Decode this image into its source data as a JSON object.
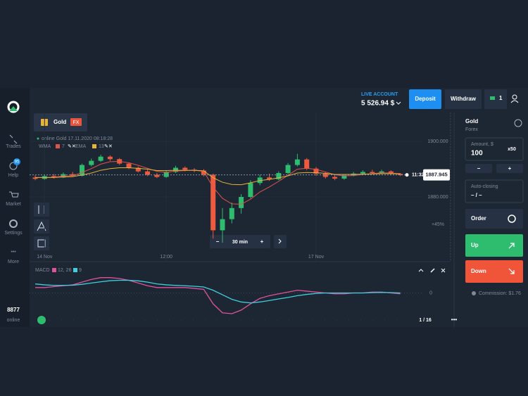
{
  "ui": {
    "sidebar": {
      "items": [
        "Trades",
        "Help",
        "Market",
        "Settings",
        "More"
      ],
      "help_badge": "95",
      "online_count": "8877",
      "online_label": "online"
    },
    "header": {
      "account_label": "LIVE ACCOUNT",
      "balance": "5 526.94 $",
      "deposit": "Deposit",
      "withdraw": "Withdraw",
      "badge": "1"
    },
    "asset_tab": {
      "name": "Gold",
      "badge": "FX"
    },
    "chart_info": "online Gold 17.11.2020 08:18:28",
    "payout": "+45%",
    "timeframe": {
      "minus": "−",
      "value": "30 min",
      "plus": "+"
    },
    "pager": "1 / 16",
    "panel": {
      "asset": "Gold",
      "asset_type": "Forex",
      "amount_label": "Amount, $",
      "amount": "100",
      "multiplier": "x50",
      "minus": "−",
      "plus": "+",
      "auto_closing_label": "Auto-closing",
      "auto_closing_value": "– / –",
      "order": "Order",
      "up": "Up",
      "down": "Down",
      "commission": "Commission: $1.76"
    }
  },
  "chart_data": [
    {
      "type": "candlestick",
      "up_color": "#2ebd6e",
      "down_color": "#ec5a3f",
      "categories": [
        null,
        "14 Nov",
        null,
        null,
        null,
        null,
        null,
        null,
        null,
        null,
        null,
        null,
        null,
        null,
        "12:00",
        null,
        null,
        null,
        null,
        null,
        null,
        null,
        null,
        null,
        null,
        null,
        null,
        null,
        null,
        null,
        "17 Nov",
        null,
        null,
        null,
        null,
        null,
        null,
        null,
        null,
        null
      ],
      "open": [
        1887.0,
        1886.5,
        1887.5,
        1887.0,
        1888.2,
        1887.6,
        1891.5,
        1893.0,
        1894.5,
        1893.6,
        1892.0,
        1890.5,
        1889.2,
        1888.0,
        1887.2,
        1889.0,
        1890.5,
        1889.8,
        1889.5,
        1888.0,
        1868.0,
        1872.0,
        1876.0,
        1880.0,
        1885.0,
        1887.0,
        1886.4,
        1888.6,
        1891.5,
        1893.5,
        1890.2,
        1888.4,
        1887.2,
        1886.6,
        1887.8,
        1888.4,
        1889.0,
        1888.6,
        1889.2,
        1888.3
      ],
      "high": [
        1887.8,
        1888.0,
        1888.2,
        1888.8,
        1889.0,
        1892.0,
        1893.8,
        1895.2,
        1895.0,
        1894.0,
        1892.4,
        1891.0,
        1889.8,
        1888.6,
        1889.6,
        1891.2,
        1891.0,
        1890.4,
        1890.0,
        1888.4,
        1876.0,
        1878.0,
        1881.0,
        1886.0,
        1888.0,
        1888.4,
        1889.2,
        1892.2,
        1895.5,
        1894.0,
        1890.8,
        1889.0,
        1887.8,
        1888.2,
        1889.0,
        1889.6,
        1889.8,
        1889.8,
        1889.6,
        1888.6
      ],
      "low": [
        1886.0,
        1886.2,
        1886.6,
        1886.8,
        1887.2,
        1887.4,
        1891.0,
        1892.6,
        1893.0,
        1891.5,
        1890.0,
        1888.8,
        1887.5,
        1886.8,
        1886.9,
        1888.6,
        1889.2,
        1888.9,
        1887.4,
        1865.0,
        1863.5,
        1870.5,
        1874.0,
        1879.5,
        1884.2,
        1885.8,
        1886.0,
        1888.2,
        1891.0,
        1889.6,
        1887.6,
        1886.6,
        1886.0,
        1886.2,
        1887.4,
        1888.0,
        1888.2,
        1888.2,
        1887.8,
        1887.5
      ],
      "close": [
        1886.5,
        1887.5,
        1887.0,
        1888.2,
        1887.6,
        1891.5,
        1893.0,
        1894.5,
        1893.6,
        1892.0,
        1890.5,
        1889.2,
        1888.0,
        1887.2,
        1889.0,
        1890.5,
        1889.8,
        1889.5,
        1888.0,
        1868.0,
        1872.0,
        1876.0,
        1880.0,
        1885.0,
        1887.0,
        1886.4,
        1888.6,
        1891.5,
        1893.5,
        1890.2,
        1888.4,
        1887.2,
        1886.6,
        1887.8,
        1888.4,
        1889.0,
        1888.6,
        1889.2,
        1888.3,
        1887.9
      ],
      "series": [
        {
          "name": "WMA",
          "period": "7",
          "color": "#e0534a",
          "values": [
            1887.0,
            1887.0,
            1887.1,
            1887.5,
            1887.6,
            1888.8,
            1890.2,
            1891.8,
            1892.7,
            1892.8,
            1892.3,
            1891.4,
            1890.3,
            1889.2,
            1888.9,
            1889.3,
            1889.5,
            1889.6,
            1889.2,
            1883.5,
            1879.5,
            1877.5,
            1877.4,
            1879.2,
            1881.8,
            1883.6,
            1885.6,
            1887.8,
            1890.0,
            1890.3,
            1889.9,
            1889.0,
            1888.0,
            1887.6,
            1887.7,
            1888.1,
            1888.4,
            1888.7,
            1888.6,
            1888.4
          ]
        },
        {
          "name": "EMA",
          "period": "13",
          "color": "#e8b339",
          "values": [
            1887.0,
            1887.0,
            1887.0,
            1887.2,
            1887.3,
            1887.9,
            1888.6,
            1889.6,
            1890.2,
            1890.5,
            1890.5,
            1890.3,
            1890.0,
            1889.5,
            1889.5,
            1889.6,
            1889.6,
            1889.6,
            1889.4,
            1886.9,
            1885.3,
            1884.5,
            1884.4,
            1885.1,
            1885.9,
            1886.3,
            1886.9,
            1887.6,
            1888.6,
            1888.8,
            1888.7,
            1888.5,
            1888.1,
            1888.1,
            1888.1,
            1888.2,
            1888.3,
            1888.4,
            1888.4,
            1888.3
          ]
        }
      ],
      "ylim": [
        1858,
        1904
      ],
      "yticks": [
        {
          "value": 1880,
          "label": "1880.000"
        },
        {
          "value": 1900,
          "label": "1900.000"
        }
      ],
      "current_price": {
        "value": 1887.945,
        "label": "1887.945"
      },
      "current_time": "11:32"
    },
    {
      "type": "line",
      "title": "MACD",
      "series": [
        {
          "name": "12, 26",
          "color": "#e0529c",
          "values": [
            0.3,
            0.3,
            0.35,
            0.4,
            0.45,
            0.6,
            0.75,
            0.85,
            0.85,
            0.8,
            0.7,
            0.55,
            0.4,
            0.3,
            0.3,
            0.3,
            0.3,
            0.25,
            0.2,
            -0.6,
            -1.1,
            -1.15,
            -0.95,
            -0.6,
            -0.3,
            -0.15,
            -0.05,
            0.05,
            0.15,
            0.1,
            0.05,
            0.0,
            -0.05,
            -0.05,
            0.0,
            0.0,
            0.05,
            0.05,
            0.0,
            -0.05
          ]
        },
        {
          "name": "9",
          "color": "#3fd0e0",
          "values": [
            0.5,
            0.45,
            0.42,
            0.42,
            0.43,
            0.48,
            0.55,
            0.62,
            0.68,
            0.7,
            0.7,
            0.67,
            0.6,
            0.5,
            0.45,
            0.42,
            0.4,
            0.37,
            0.33,
            0.15,
            -0.1,
            -0.35,
            -0.5,
            -0.55,
            -0.5,
            -0.42,
            -0.33,
            -0.25,
            -0.15,
            -0.08,
            -0.03,
            0.0,
            0.0,
            0.0,
            0.0,
            0.0,
            0.02,
            0.03,
            0.02,
            0.0
          ]
        }
      ],
      "ylim": [
        -1.5,
        1.5
      ],
      "yticks": [
        0
      ]
    }
  ]
}
